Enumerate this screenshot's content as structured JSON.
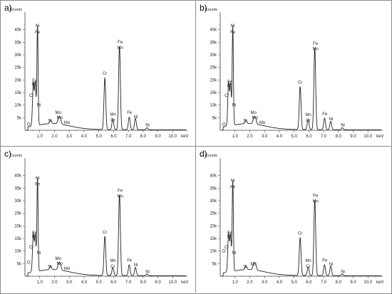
{
  "chart_data": [
    {
      "type": "line",
      "panel_label": "a)",
      "ylabel": "Counts",
      "xunit": "keV",
      "xlim": [
        0,
        11
      ],
      "ylim": [
        0,
        43000
      ],
      "x_ticks": [
        {
          "v": 1,
          "t": "1.0"
        },
        {
          "v": 2,
          "t": "2.0"
        },
        {
          "v": 3,
          "t": "3.0"
        },
        {
          "v": 4,
          "t": "4.0"
        },
        {
          "v": 5,
          "t": "5.0"
        },
        {
          "v": 6,
          "t": "6.0"
        },
        {
          "v": 7,
          "t": "7.0"
        },
        {
          "v": 8,
          "t": "8.0"
        },
        {
          "v": 9,
          "t": "9.0"
        },
        {
          "v": 10,
          "t": "10.0"
        }
      ],
      "y_ticks": [
        {
          "v": 5000,
          "t": "5k"
        },
        {
          "v": 10000,
          "t": "10k"
        },
        {
          "v": 15000,
          "t": "15k"
        },
        {
          "v": 20000,
          "t": "20k"
        },
        {
          "v": 25000,
          "t": "25k"
        },
        {
          "v": 30000,
          "t": "30k"
        },
        {
          "v": 35000,
          "t": "35k"
        },
        {
          "v": 40000,
          "t": "40k"
        }
      ],
      "peaks": [
        {
          "x": 0.52,
          "y": 2500,
          "w": 0.05
        },
        {
          "x": 0.57,
          "y": 15500,
          "w": 0.05
        },
        {
          "x": 0.7,
          "y": 17000,
          "w": 0.05
        },
        {
          "x": 0.85,
          "y": 39500,
          "w": 0.04
        },
        {
          "x": 1.74,
          "y": 1500,
          "w": 0.06
        },
        {
          "x": 2.29,
          "y": 2500,
          "w": 0.07
        },
        {
          "x": 2.4,
          "y": 1800,
          "w": 0.06
        },
        {
          "x": 5.41,
          "y": 20500,
          "w": 0.06
        },
        {
          "x": 5.95,
          "y": 4200,
          "w": 0.06
        },
        {
          "x": 6.4,
          "y": 33000,
          "w": 0.06
        },
        {
          "x": 7.06,
          "y": 5000,
          "w": 0.06
        },
        {
          "x": 7.48,
          "y": 4500,
          "w": 0.06
        },
        {
          "x": 8.26,
          "y": 800,
          "w": 0.06
        }
      ],
      "annotations": [
        {
          "text": "Ni",
          "x": 0.85,
          "y": 41000
        },
        {
          "text": "Fe",
          "x": 0.85,
          "y": 38500
        },
        {
          "text": "Fe",
          "x": 0.66,
          "y": 19300
        },
        {
          "text": "Cr",
          "x": 0.62,
          "y": 17800
        },
        {
          "text": "Cr",
          "x": 0.44,
          "y": 13300
        },
        {
          "text": "Ni",
          "x": 0.93,
          "y": 9500
        },
        {
          "text": "O",
          "x": 0.25,
          "y": 1800
        },
        {
          "text": "Si",
          "x": 1.68,
          "y": 3300
        },
        {
          "text": "Mo",
          "x": 2.25,
          "y": 6500
        },
        {
          "text": "Mo",
          "x": 2.35,
          "y": 4500
        },
        {
          "text": "Mo",
          "x": 2.85,
          "y": 2500
        },
        {
          "text": "Cr",
          "x": 5.41,
          "y": 22000
        },
        {
          "text": "Mn",
          "x": 5.96,
          "y": 5800
        },
        {
          "text": "Cr",
          "x": 5.95,
          "y": 3600
        },
        {
          "text": "Fe",
          "x": 6.45,
          "y": 34500
        },
        {
          "text": "Mn",
          "x": 6.45,
          "y": 32300
        },
        {
          "text": "Fe",
          "x": 7.08,
          "y": 6500
        },
        {
          "text": "Ni",
          "x": 7.5,
          "y": 4800
        },
        {
          "text": "Ni",
          "x": 8.3,
          "y": 1500
        }
      ]
    },
    {
      "type": "line",
      "panel_label": "b)",
      "ylabel": "Counts",
      "xunit": "keV",
      "xlim": [
        0,
        11
      ],
      "ylim": [
        0,
        43000
      ],
      "x_ticks": [
        {
          "v": 1,
          "t": "1.0"
        },
        {
          "v": 2,
          "t": "2.0"
        },
        {
          "v": 3,
          "t": "3.0"
        },
        {
          "v": 4,
          "t": "4.0"
        },
        {
          "v": 5,
          "t": "5.0"
        },
        {
          "v": 6,
          "t": "6.0"
        },
        {
          "v": 7,
          "t": "7.0"
        },
        {
          "v": 8,
          "t": "8.0"
        },
        {
          "v": 9,
          "t": "9.0"
        },
        {
          "v": 10,
          "t": "10.0"
        }
      ],
      "y_ticks": [
        {
          "v": 5000,
          "t": "5k"
        },
        {
          "v": 10000,
          "t": "10k"
        },
        {
          "v": 15000,
          "t": "15k"
        },
        {
          "v": 20000,
          "t": "20k"
        },
        {
          "v": 25000,
          "t": "25k"
        },
        {
          "v": 30000,
          "t": "30k"
        },
        {
          "v": 35000,
          "t": "35k"
        },
        {
          "v": 40000,
          "t": "40k"
        }
      ],
      "peaks": [
        {
          "x": 0.52,
          "y": 2500,
          "w": 0.05
        },
        {
          "x": 0.57,
          "y": 15500,
          "w": 0.05
        },
        {
          "x": 0.7,
          "y": 16500,
          "w": 0.05
        },
        {
          "x": 0.85,
          "y": 39500,
          "w": 0.04
        },
        {
          "x": 1.74,
          "y": 1500,
          "w": 0.06
        },
        {
          "x": 2.29,
          "y": 2500,
          "w": 0.07
        },
        {
          "x": 2.4,
          "y": 1800,
          "w": 0.06
        },
        {
          "x": 5.41,
          "y": 17000,
          "w": 0.06
        },
        {
          "x": 5.95,
          "y": 4000,
          "w": 0.06
        },
        {
          "x": 6.4,
          "y": 32500,
          "w": 0.06
        },
        {
          "x": 7.06,
          "y": 4600,
          "w": 0.06
        },
        {
          "x": 7.48,
          "y": 3300,
          "w": 0.06
        },
        {
          "x": 8.26,
          "y": 800,
          "w": 0.06
        }
      ],
      "annotations": [
        {
          "text": "Ni",
          "x": 0.85,
          "y": 41000
        },
        {
          "text": "Fe",
          "x": 0.85,
          "y": 38500
        },
        {
          "text": "Fe",
          "x": 0.66,
          "y": 18800
        },
        {
          "text": "Cr",
          "x": 0.62,
          "y": 17300
        },
        {
          "text": "Cr",
          "x": 0.44,
          "y": 13300
        },
        {
          "text": "Ni",
          "x": 0.93,
          "y": 9500
        },
        {
          "text": "O",
          "x": 0.25,
          "y": 1800
        },
        {
          "text": "Si",
          "x": 1.68,
          "y": 3300
        },
        {
          "text": "Mo",
          "x": 2.25,
          "y": 6500
        },
        {
          "text": "Mo",
          "x": 2.35,
          "y": 4500
        },
        {
          "text": "Mo",
          "x": 2.85,
          "y": 2500
        },
        {
          "text": "Cr",
          "x": 5.41,
          "y": 18500
        },
        {
          "text": "Mn",
          "x": 5.96,
          "y": 5600
        },
        {
          "text": "Cr",
          "x": 5.95,
          "y": 3400
        },
        {
          "text": "Fe",
          "x": 6.45,
          "y": 34000
        },
        {
          "text": "Mn",
          "x": 6.45,
          "y": 31800
        },
        {
          "text": "Fe",
          "x": 7.08,
          "y": 6000
        },
        {
          "text": "Ni",
          "x": 7.5,
          "y": 3900
        },
        {
          "text": "Ni",
          "x": 8.3,
          "y": 1500
        }
      ]
    },
    {
      "type": "line",
      "panel_label": "c)",
      "ylabel": "Counts",
      "xunit": "keV",
      "xlim": [
        0,
        11
      ],
      "ylim": [
        0,
        43000
      ],
      "x_ticks": [
        {
          "v": 1,
          "t": "1.0"
        },
        {
          "v": 2,
          "t": "2.0"
        },
        {
          "v": 3,
          "t": "3.0"
        },
        {
          "v": 4,
          "t": "4.0"
        },
        {
          "v": 5,
          "t": "5.0"
        },
        {
          "v": 6,
          "t": "6.0"
        },
        {
          "v": 7,
          "t": "7.0"
        },
        {
          "v": 8,
          "t": "8.0"
        },
        {
          "v": 9,
          "t": "9.0"
        },
        {
          "v": 10,
          "t": "10.0"
        }
      ],
      "y_ticks": [
        {
          "v": 5000,
          "t": "5k"
        },
        {
          "v": 10000,
          "t": "10k"
        },
        {
          "v": 15000,
          "t": "15k"
        },
        {
          "v": 20000,
          "t": "20k"
        },
        {
          "v": 25000,
          "t": "25k"
        },
        {
          "v": 30000,
          "t": "30k"
        },
        {
          "v": 35000,
          "t": "35k"
        },
        {
          "v": 40000,
          "t": "40k"
        }
      ],
      "peaks": [
        {
          "x": 0.52,
          "y": 2500,
          "w": 0.05
        },
        {
          "x": 0.57,
          "y": 13500,
          "w": 0.05
        },
        {
          "x": 0.7,
          "y": 14500,
          "w": 0.05
        },
        {
          "x": 0.85,
          "y": 37000,
          "w": 0.04
        },
        {
          "x": 1.74,
          "y": 1500,
          "w": 0.06
        },
        {
          "x": 2.29,
          "y": 2500,
          "w": 0.07
        },
        {
          "x": 2.4,
          "y": 1800,
          "w": 0.06
        },
        {
          "x": 5.41,
          "y": 15500,
          "w": 0.06
        },
        {
          "x": 5.95,
          "y": 3300,
          "w": 0.06
        },
        {
          "x": 6.4,
          "y": 32000,
          "w": 0.06
        },
        {
          "x": 7.06,
          "y": 4300,
          "w": 0.06
        },
        {
          "x": 7.48,
          "y": 3300,
          "w": 0.06
        },
        {
          "x": 8.26,
          "y": 700,
          "w": 0.06
        }
      ],
      "annotations": [
        {
          "text": "Ni",
          "x": 0.85,
          "y": 38500
        },
        {
          "text": "Fe",
          "x": 0.85,
          "y": 36000
        },
        {
          "text": "Fe",
          "x": 0.66,
          "y": 16800
        },
        {
          "text": "Cr",
          "x": 0.62,
          "y": 15300
        },
        {
          "text": "Cr",
          "x": 0.44,
          "y": 11000
        },
        {
          "text": "Ni",
          "x": 0.93,
          "y": 8800
        },
        {
          "text": "O",
          "x": 0.25,
          "y": 5000
        },
        {
          "text": "Si",
          "x": 1.68,
          "y": 3300
        },
        {
          "text": "Mo",
          "x": 2.25,
          "y": 6500
        },
        {
          "text": "Mo",
          "x": 2.35,
          "y": 4500
        },
        {
          "text": "Mo",
          "x": 2.85,
          "y": 2500
        },
        {
          "text": "Cr",
          "x": 5.41,
          "y": 17000
        },
        {
          "text": "Mn",
          "x": 5.96,
          "y": 5600
        },
        {
          "text": "Cr",
          "x": 5.95,
          "y": 3400
        },
        {
          "text": "Fe",
          "x": 6.45,
          "y": 33500
        },
        {
          "text": "Mn",
          "x": 6.45,
          "y": 31300
        },
        {
          "text": "Fe",
          "x": 7.08,
          "y": 5800
        },
        {
          "text": "Ni",
          "x": 7.5,
          "y": 3900
        },
        {
          "text": "Ni",
          "x": 8.3,
          "y": 1300
        }
      ]
    },
    {
      "type": "line",
      "panel_label": "d)",
      "ylabel": "Counts",
      "xunit": "keV",
      "xlim": [
        0,
        11
      ],
      "ylim": [
        0,
        43000
      ],
      "x_ticks": [
        {
          "v": 1,
          "t": "1.0"
        },
        {
          "v": 2,
          "t": "2.0"
        },
        {
          "v": 3,
          "t": "3.0"
        },
        {
          "v": 4,
          "t": "4.0"
        },
        {
          "v": 5,
          "t": "5.0"
        },
        {
          "v": 6,
          "t": "6.0"
        },
        {
          "v": 7,
          "t": "7.0"
        },
        {
          "v": 8,
          "t": "8.0"
        },
        {
          "v": 9,
          "t": "9.0"
        },
        {
          "v": 10,
          "t": "10.0"
        }
      ],
      "y_ticks": [
        {
          "v": 5000,
          "t": "5k"
        },
        {
          "v": 10000,
          "t": "10k"
        },
        {
          "v": 15000,
          "t": "15k"
        },
        {
          "v": 20000,
          "t": "20k"
        },
        {
          "v": 25000,
          "t": "25k"
        },
        {
          "v": 30000,
          "t": "30k"
        },
        {
          "v": 35000,
          "t": "35k"
        },
        {
          "v": 40000,
          "t": "40k"
        }
      ],
      "peaks": [
        {
          "x": 0.52,
          "y": 2500,
          "w": 0.05
        },
        {
          "x": 0.57,
          "y": 13500,
          "w": 0.05
        },
        {
          "x": 0.7,
          "y": 14500,
          "w": 0.05
        },
        {
          "x": 0.85,
          "y": 36000,
          "w": 0.04
        },
        {
          "x": 1.74,
          "y": 1500,
          "w": 0.06
        },
        {
          "x": 2.29,
          "y": 2500,
          "w": 0.07
        },
        {
          "x": 2.4,
          "y": 1800,
          "w": 0.06
        },
        {
          "x": 5.41,
          "y": 15000,
          "w": 0.06
        },
        {
          "x": 5.95,
          "y": 3500,
          "w": 0.06
        },
        {
          "x": 6.4,
          "y": 30000,
          "w": 0.06
        },
        {
          "x": 7.06,
          "y": 4300,
          "w": 0.06
        },
        {
          "x": 7.48,
          "y": 3800,
          "w": 0.06
        },
        {
          "x": 8.26,
          "y": 700,
          "w": 0.06
        }
      ],
      "annotations": [
        {
          "text": "Ni",
          "x": 0.85,
          "y": 37500
        },
        {
          "text": "Fe",
          "x": 0.85,
          "y": 35000
        },
        {
          "text": "Fe",
          "x": 0.66,
          "y": 16800
        },
        {
          "text": "Cr",
          "x": 0.62,
          "y": 15300
        },
        {
          "text": "Cr",
          "x": 0.44,
          "y": 11000
        },
        {
          "text": "Ni",
          "x": 0.93,
          "y": 8800
        },
        {
          "text": "O",
          "x": 0.25,
          "y": 9500
        },
        {
          "text": "Si",
          "x": 1.68,
          "y": 3300
        },
        {
          "text": "Mo",
          "x": 2.25,
          "y": 4300
        },
        {
          "text": "Cr",
          "x": 5.41,
          "y": 16500
        },
        {
          "text": "Mn",
          "x": 5.96,
          "y": 5600
        },
        {
          "text": "Cr",
          "x": 5.95,
          "y": 3400
        },
        {
          "text": "Fe",
          "x": 6.45,
          "y": 31500
        },
        {
          "text": "Mn",
          "x": 6.45,
          "y": 29300
        },
        {
          "text": "Fe",
          "x": 7.08,
          "y": 5800
        },
        {
          "text": "Ni",
          "x": 7.5,
          "y": 4300
        },
        {
          "text": "Ni",
          "x": 8.3,
          "y": 1300
        }
      ]
    }
  ]
}
